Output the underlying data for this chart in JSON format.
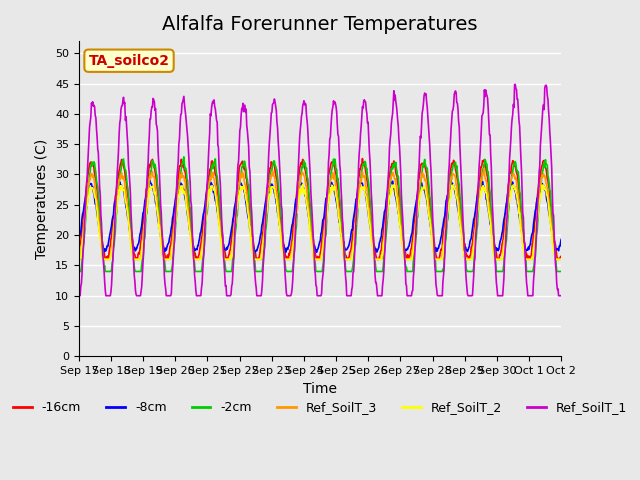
{
  "title": "Alfalfa Forerunner Temperatures",
  "ylabel": "Temperatures (C)",
  "xlabel": "Time",
  "annotation": "TA_soilco2",
  "ylim": [
    0,
    52
  ],
  "yticks": [
    0,
    5,
    10,
    15,
    20,
    25,
    30,
    35,
    40,
    45,
    50
  ],
  "x_labels": [
    "Sep 17",
    "Sep 18",
    "Sep 19",
    "Sep 20",
    "Sep 21",
    "Sep 22",
    "Sep 23",
    "Sep 24",
    "Sep 25",
    "Sep 26",
    "Sep 27",
    "Sep 28",
    "Sep 29",
    "Sep 30",
    "Oct 1",
    "Oct 2"
  ],
  "series_colors": {
    "-16cm": "#ff0000",
    "-8cm": "#0000ff",
    "-2cm": "#00cc00",
    "Ref_SoilT_3": "#ff9900",
    "Ref_SoilT_2": "#ffff00",
    "Ref_SoilT_1": "#cc00cc"
  },
  "legend_order": [
    "-16cm",
    "-8cm",
    "-2cm",
    "Ref_SoilT_3",
    "Ref_SoilT_2",
    "Ref_SoilT_1"
  ],
  "bg_color": "#e8e8e8",
  "plot_bg_color": "#e8e8e8",
  "grid_color": "#ffffff",
  "title_fontsize": 14,
  "axis_fontsize": 10,
  "tick_fontsize": 8,
  "legend_fontsize": 9
}
